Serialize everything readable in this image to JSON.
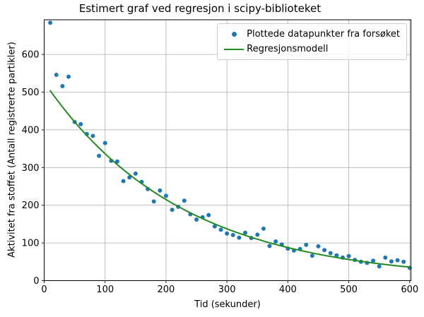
{
  "title": "Estimert graf ved regresjon i scipy-biblioteket",
  "xlabel": "Tid (sekunder)",
  "ylabel": "Aktivitet fra stoffet (Antall registrerte partikler)",
  "legend": {
    "entries": [
      {
        "label": "Plottede datapunkter fra forsøket",
        "marker": "dot",
        "color": "#1f77b4"
      },
      {
        "label": "Regresjonsmodell",
        "marker": "line",
        "color": "#228B22"
      }
    ]
  },
  "colors": {
    "scatter": "#1f77b4",
    "regression_line": "#228B22",
    "grid": "#b0b0b0",
    "spine": "#000000",
    "tick_label": "#000000"
  },
  "chart_data": {
    "type": "scatter",
    "title": "Estimert graf ved regresjon i scipy-biblioteket",
    "xlabel": "Tid (sekunder)",
    "ylabel": "Aktivitet fra stoffet (Antall registrerte partikler)",
    "xlim": [
      0,
      602
    ],
    "ylim": [
      0,
      692
    ],
    "xticks": [
      0,
      100,
      200,
      300,
      400,
      500,
      600
    ],
    "yticks": [
      0,
      100,
      200,
      300,
      400,
      500,
      600
    ],
    "grid": true,
    "legend_position": "upper right",
    "series": [
      {
        "name": "Plottede datapunkter fra forsøket",
        "type": "scatter",
        "color": "#1f77b4",
        "x": [
          10,
          20,
          30,
          40,
          50,
          60,
          70,
          80,
          90,
          100,
          110,
          120,
          130,
          140,
          150,
          160,
          170,
          180,
          190,
          200,
          210,
          220,
          230,
          240,
          250,
          260,
          270,
          280,
          290,
          300,
          310,
          320,
          330,
          340,
          350,
          360,
          370,
          380,
          390,
          400,
          410,
          420,
          430,
          440,
          450,
          460,
          470,
          480,
          490,
          500,
          510,
          520,
          530,
          540,
          550,
          560,
          570,
          580,
          590,
          600
        ],
        "y": [
          684,
          546,
          516,
          541,
          421,
          415,
          389,
          384,
          331,
          365,
          318,
          316,
          264,
          274,
          284,
          262,
          243,
          210,
          239,
          225,
          188,
          196,
          212,
          176,
          162,
          168,
          174,
          144,
          135,
          125,
          121,
          114,
          127,
          113,
          122,
          138,
          92,
          104,
          96,
          85,
          80,
          84,
          95,
          66,
          91,
          81,
          73,
          67,
          61,
          65,
          55,
          50,
          47,
          53,
          38,
          61,
          51,
          54,
          50,
          34
        ]
      },
      {
        "name": "Regresjonsmodell",
        "type": "line",
        "color": "#228B22",
        "model": "A*exp(-lambda*t)",
        "A": 527,
        "lambda": 0.00448,
        "t_start": 10,
        "t_end": 600
      }
    ]
  }
}
